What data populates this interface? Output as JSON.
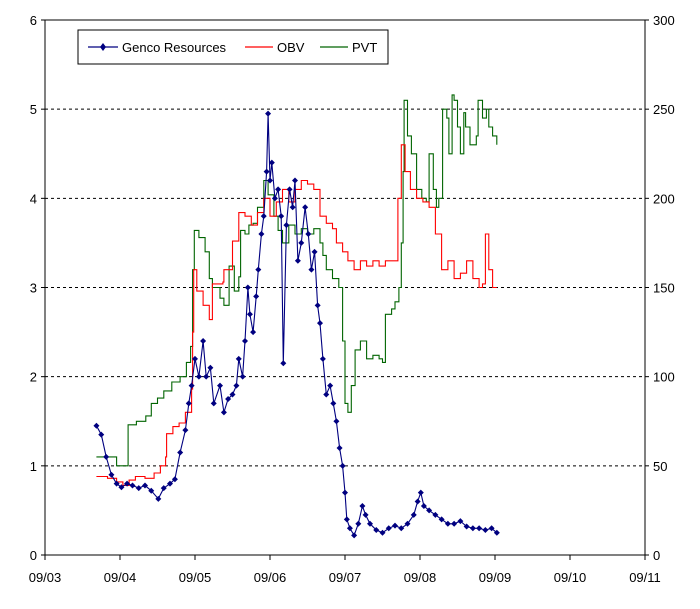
{
  "chart_data": {
    "type": "line",
    "title": "",
    "xlabel": "",
    "ylabel": "",
    "x_tick_labels": [
      "09/03",
      "09/04",
      "09/05",
      "09/06",
      "09/07",
      "09/08",
      "09/09",
      "09/10",
      "09/11"
    ],
    "xlim": [
      "2003-09",
      "2011-09"
    ],
    "y_left": {
      "lim": [
        0,
        6
      ],
      "ticks": [
        "0",
        "1",
        "2",
        "3",
        "4",
        "5",
        "6"
      ]
    },
    "y_right": {
      "lim": [
        0,
        300
      ],
      "ticks": [
        "0",
        "50",
        "100",
        "150",
        "200",
        "250",
        "300"
      ]
    },
    "grid": "horizontal dashed",
    "legend": "top-left",
    "colors": {
      "genco": "#000080",
      "obv": "#ff0000",
      "pvt": "#006400"
    },
    "series": [
      {
        "name": "Genco Resources",
        "axis": "left",
        "marker": "diamond",
        "points": [
          [
            "2004-05-08",
            1.45
          ],
          [
            "2004-06-01",
            1.35
          ],
          [
            "2004-06-25",
            1.1
          ],
          [
            "2004-07-20",
            0.9
          ],
          [
            "2004-08-15",
            0.8
          ],
          [
            "2004-09-08",
            0.76
          ],
          [
            "2004-10-05",
            0.8
          ],
          [
            "2004-11-01",
            0.78
          ],
          [
            "2004-12-01",
            0.75
          ],
          [
            "2005-01-01",
            0.78
          ],
          [
            "2005-02-01",
            0.72
          ],
          [
            "2005-03-05",
            0.63
          ],
          [
            "2005-04-01",
            0.75
          ],
          [
            "2005-05-01",
            0.8
          ],
          [
            "2005-05-25",
            0.85
          ],
          [
            "2005-06-20",
            1.15
          ],
          [
            "2005-07-15",
            1.4
          ],
          [
            "2005-08-01",
            1.7
          ],
          [
            "2005-08-15",
            1.9
          ],
          [
            "2005-09-01",
            2.2
          ],
          [
            "2005-09-20",
            2.0
          ],
          [
            "2005-10-10",
            2.4
          ],
          [
            "2005-10-25",
            2.0
          ],
          [
            "2005-11-15",
            2.1
          ],
          [
            "2005-12-01",
            1.7
          ],
          [
            "2006-01-01",
            1.9
          ],
          [
            "2006-01-20",
            1.6
          ],
          [
            "2006-02-10",
            1.75
          ],
          [
            "2006-03-01",
            1.8
          ],
          [
            "2006-03-20",
            1.9
          ],
          [
            "2006-04-01",
            2.2
          ],
          [
            "2006-04-20",
            2.0
          ],
          [
            "2006-05-01",
            2.4
          ],
          [
            "2006-05-15",
            3.0
          ],
          [
            "2006-05-25",
            2.7
          ],
          [
            "2006-06-10",
            2.5
          ],
          [
            "2006-06-25",
            2.9
          ],
          [
            "2006-07-05",
            3.2
          ],
          [
            "2006-07-20",
            3.6
          ],
          [
            "2006-08-01",
            3.8
          ],
          [
            "2006-08-15",
            4.3
          ],
          [
            "2006-08-22",
            4.95
          ],
          [
            "2006-09-01",
            4.2
          ],
          [
            "2006-09-10",
            4.4
          ],
          [
            "2006-09-25",
            4.0
          ],
          [
            "2006-10-10",
            4.1
          ],
          [
            "2006-10-25",
            3.8
          ],
          [
            "2006-11-05",
            2.15
          ],
          [
            "2006-11-20",
            3.7
          ],
          [
            "2006-12-05",
            4.1
          ],
          [
            "2006-12-20",
            3.9
          ],
          [
            "2007-01-01",
            4.2
          ],
          [
            "2007-01-15",
            3.3
          ],
          [
            "2007-02-01",
            3.5
          ],
          [
            "2007-02-20",
            3.9
          ],
          [
            "2007-03-05",
            3.6
          ],
          [
            "2007-03-20",
            3.2
          ],
          [
            "2007-04-05",
            3.4
          ],
          [
            "2007-04-20",
            2.8
          ],
          [
            "2007-05-01",
            2.6
          ],
          [
            "2007-05-15",
            2.2
          ],
          [
            "2007-06-01",
            1.8
          ],
          [
            "2007-06-20",
            1.9
          ],
          [
            "2007-07-05",
            1.7
          ],
          [
            "2007-07-20",
            1.5
          ],
          [
            "2007-08-05",
            1.2
          ],
          [
            "2007-08-20",
            1.0
          ],
          [
            "2007-09-01",
            0.7
          ],
          [
            "2007-09-10",
            0.4
          ],
          [
            "2007-09-25",
            0.3
          ],
          [
            "2007-10-15",
            0.22
          ],
          [
            "2007-11-05",
            0.35
          ],
          [
            "2007-11-25",
            0.55
          ],
          [
            "2007-12-10",
            0.45
          ],
          [
            "2008-01-01",
            0.35
          ],
          [
            "2008-02-01",
            0.28
          ],
          [
            "2008-03-01",
            0.25
          ],
          [
            "2008-04-01",
            0.3
          ],
          [
            "2008-05-01",
            0.33
          ],
          [
            "2008-06-01",
            0.3
          ],
          [
            "2008-07-01",
            0.35
          ],
          [
            "2008-08-01",
            0.45
          ],
          [
            "2008-08-20",
            0.6
          ],
          [
            "2008-09-05",
            0.7
          ],
          [
            "2008-09-20",
            0.55
          ],
          [
            "2008-10-15",
            0.5
          ],
          [
            "2008-11-15",
            0.45
          ],
          [
            "2008-12-15",
            0.4
          ],
          [
            "2009-01-15",
            0.35
          ],
          [
            "2009-02-15",
            0.35
          ],
          [
            "2009-03-15",
            0.38
          ],
          [
            "2009-04-15",
            0.32
          ],
          [
            "2009-05-15",
            0.3
          ],
          [
            "2009-06-15",
            0.3
          ],
          [
            "2009-07-15",
            0.28
          ],
          [
            "2009-08-15",
            0.3
          ],
          [
            "2009-09-10",
            0.25
          ]
        ]
      },
      {
        "name": "OBV",
        "axis": "right",
        "marker": "none",
        "points": [
          [
            "2004-05-08",
            44
          ],
          [
            "2004-07-01",
            43
          ],
          [
            "2004-08-15",
            41
          ],
          [
            "2004-09-15",
            39
          ],
          [
            "2004-10-15",
            42
          ],
          [
            "2004-11-15",
            44
          ],
          [
            "2005-01-01",
            43
          ],
          [
            "2005-02-15",
            46
          ],
          [
            "2005-03-15",
            50
          ],
          [
            "2005-04-10",
            55
          ],
          [
            "2005-04-15",
            68
          ],
          [
            "2005-05-15",
            72
          ],
          [
            "2005-06-15",
            74
          ],
          [
            "2005-07-15",
            80
          ],
          [
            "2005-08-15",
            93
          ],
          [
            "2005-08-20",
            125
          ],
          [
            "2005-08-25",
            160
          ],
          [
            "2005-09-10",
            148
          ],
          [
            "2005-10-10",
            140
          ],
          [
            "2005-11-10",
            132
          ],
          [
            "2005-11-20",
            132
          ],
          [
            "2005-11-25",
            152
          ],
          [
            "2006-01-15",
            153
          ],
          [
            "2006-01-20",
            160
          ],
          [
            "2006-02-20",
            160
          ],
          [
            "2006-03-01",
            176
          ],
          [
            "2006-03-20",
            176
          ],
          [
            "2006-04-01",
            192
          ],
          [
            "2006-05-01",
            190
          ],
          [
            "2006-06-01",
            185
          ],
          [
            "2006-07-01",
            192
          ],
          [
            "2006-08-01",
            200
          ],
          [
            "2006-09-01",
            190
          ],
          [
            "2006-10-01",
            198
          ],
          [
            "2006-11-01",
            205
          ],
          [
            "2006-12-01",
            198
          ],
          [
            "2007-01-01",
            205
          ],
          [
            "2007-02-01",
            210
          ],
          [
            "2007-03-01",
            208
          ],
          [
            "2007-04-01",
            205
          ],
          [
            "2007-05-01",
            190
          ],
          [
            "2007-06-01",
            186
          ],
          [
            "2007-07-01",
            183
          ],
          [
            "2007-07-20",
            175
          ],
          [
            "2007-08-20",
            170
          ],
          [
            "2007-09-15",
            165
          ],
          [
            "2007-10-15",
            160
          ],
          [
            "2007-11-15",
            165
          ],
          [
            "2007-12-15",
            162
          ],
          [
            "2008-01-15",
            165
          ],
          [
            "2008-02-15",
            162
          ],
          [
            "2008-03-15",
            165
          ],
          [
            "2008-04-15",
            165
          ],
          [
            "2008-05-15",
            200
          ],
          [
            "2008-06-01",
            230
          ],
          [
            "2008-06-20",
            215
          ],
          [
            "2008-07-15",
            205
          ],
          [
            "2008-08-15",
            200
          ],
          [
            "2008-09-15",
            198
          ],
          [
            "2008-10-15",
            195
          ],
          [
            "2008-11-15",
            180
          ],
          [
            "2008-12-15",
            160
          ],
          [
            "2009-01-15",
            165
          ],
          [
            "2009-02-15",
            155
          ],
          [
            "2009-03-15",
            158
          ],
          [
            "2009-04-15",
            165
          ],
          [
            "2009-05-15",
            155
          ],
          [
            "2009-06-15",
            150
          ],
          [
            "2009-07-01",
            152
          ],
          [
            "2009-07-15",
            180
          ],
          [
            "2009-08-01",
            160
          ],
          [
            "2009-08-20",
            150
          ],
          [
            "2009-09-10",
            150
          ]
        ]
      },
      {
        "name": "PVT",
        "axis": "right",
        "marker": "none",
        "points": [
          [
            "2004-05-08",
            55
          ],
          [
            "2004-07-01",
            55
          ],
          [
            "2004-08-15",
            50
          ],
          [
            "2004-10-01",
            50
          ],
          [
            "2004-10-10",
            73
          ],
          [
            "2004-11-20",
            75
          ],
          [
            "2005-01-05",
            78
          ],
          [
            "2005-02-01",
            85
          ],
          [
            "2005-03-01",
            88
          ],
          [
            "2005-04-01",
            92
          ],
          [
            "2005-05-10",
            97
          ],
          [
            "2005-06-20",
            100
          ],
          [
            "2005-07-20",
            108
          ],
          [
            "2005-08-10",
            117
          ],
          [
            "2005-08-20",
            160
          ],
          [
            "2005-08-28",
            182
          ],
          [
            "2005-09-20",
            178
          ],
          [
            "2005-10-20",
            170
          ],
          [
            "2005-11-10",
            155
          ],
          [
            "2005-11-25",
            150
          ],
          [
            "2006-01-01",
            144
          ],
          [
            "2006-01-20",
            140
          ],
          [
            "2006-02-10",
            140
          ],
          [
            "2006-02-15",
            162
          ],
          [
            "2006-03-10",
            148
          ],
          [
            "2006-04-01",
            156
          ],
          [
            "2006-04-10",
            182
          ],
          [
            "2006-05-01",
            180
          ],
          [
            "2006-05-20",
            185
          ],
          [
            "2006-06-10",
            186
          ],
          [
            "2006-07-01",
            195
          ],
          [
            "2006-08-01",
            210
          ],
          [
            "2006-08-22",
            202
          ],
          [
            "2006-09-20",
            190
          ],
          [
            "2006-10-10",
            182
          ],
          [
            "2006-11-01",
            175
          ],
          [
            "2006-12-01",
            185
          ],
          [
            "2007-01-01",
            180
          ],
          [
            "2007-02-01",
            183
          ],
          [
            "2007-03-01",
            180
          ],
          [
            "2007-04-01",
            183
          ],
          [
            "2007-05-01",
            175
          ],
          [
            "2007-05-15",
            168
          ],
          [
            "2007-06-01",
            160
          ],
          [
            "2007-07-01",
            155
          ],
          [
            "2007-08-01",
            150
          ],
          [
            "2007-08-20",
            120
          ],
          [
            "2007-09-01",
            85
          ],
          [
            "2007-09-15",
            80
          ],
          [
            "2007-10-01",
            95
          ],
          [
            "2007-10-20",
            115
          ],
          [
            "2007-11-15",
            120
          ],
          [
            "2007-12-15",
            110
          ],
          [
            "2008-01-15",
            112
          ],
          [
            "2008-02-15",
            110
          ],
          [
            "2008-03-01",
            108
          ],
          [
            "2008-03-15",
            135
          ],
          [
            "2008-04-15",
            138
          ],
          [
            "2008-05-01",
            142
          ],
          [
            "2008-05-20",
            150
          ],
          [
            "2008-06-01",
            175
          ],
          [
            "2008-06-10",
            215
          ],
          [
            "2008-06-15",
            255
          ],
          [
            "2008-07-01",
            235
          ],
          [
            "2008-07-20",
            225
          ],
          [
            "2008-08-15",
            205
          ],
          [
            "2008-09-10",
            200
          ],
          [
            "2008-10-01",
            198
          ],
          [
            "2008-10-15",
            225
          ],
          [
            "2008-11-05",
            205
          ],
          [
            "2008-11-20",
            195
          ],
          [
            "2008-12-01",
            200
          ],
          [
            "2008-12-20",
            250
          ],
          [
            "2009-01-10",
            245
          ],
          [
            "2009-01-20",
            225
          ],
          [
            "2009-02-05",
            258
          ],
          [
            "2009-02-15",
            255
          ],
          [
            "2009-03-01",
            240
          ],
          [
            "2009-03-15",
            225
          ],
          [
            "2009-04-01",
            248
          ],
          [
            "2009-04-10",
            240
          ],
          [
            "2009-05-01",
            230
          ],
          [
            "2009-06-01",
            235
          ],
          [
            "2009-06-10",
            255
          ],
          [
            "2009-07-01",
            245
          ],
          [
            "2009-07-20",
            250
          ],
          [
            "2009-08-01",
            240
          ],
          [
            "2009-08-20",
            235
          ],
          [
            "2009-09-10",
            230
          ]
        ]
      }
    ]
  }
}
